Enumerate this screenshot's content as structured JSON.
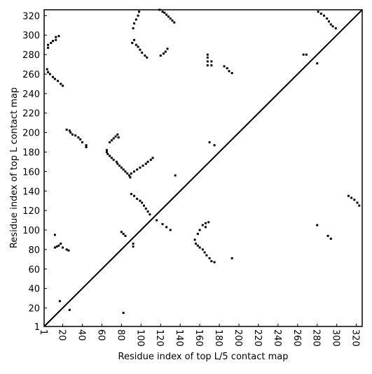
{
  "chart_data": {
    "type": "scatter",
    "xlabel": "Residue index of top L/5 contact map",
    "ylabel": "Residue index of top L contact map",
    "xlim": [
      1,
      326
    ],
    "ylim": [
      1,
      326
    ],
    "xticks": [
      1,
      20,
      40,
      60,
      80,
      100,
      120,
      140,
      160,
      180,
      200,
      220,
      240,
      260,
      280,
      300,
      320
    ],
    "yticks": [
      1,
      20,
      40,
      60,
      80,
      100,
      120,
      140,
      160,
      180,
      200,
      220,
      240,
      260,
      280,
      300,
      320
    ],
    "diagonal": true,
    "color": "#000000",
    "x": [
      5,
      5,
      8,
      10,
      13,
      13,
      16,
      4,
      5,
      7,
      10,
      12,
      15,
      18,
      20,
      24,
      27,
      28,
      30,
      33,
      36,
      38,
      40,
      44,
      44,
      65,
      65,
      66,
      68,
      70,
      72,
      75,
      76,
      78,
      80,
      82,
      84,
      86,
      88,
      89,
      68,
      70,
      72,
      74,
      76,
      77,
      90,
      93,
      96,
      99,
      102,
      105,
      107,
      110,
      112,
      92,
      93,
      95,
      97,
      98,
      91,
      93,
      95,
      97,
      99,
      101,
      104,
      106,
      119,
      122,
      124,
      126,
      128,
      130,
      132,
      134,
      120,
      123,
      125,
      127,
      281,
      284,
      287,
      290,
      292,
      294,
      296,
      299,
      266,
      269,
      280,
      168,
      168,
      168,
      168,
      172,
      172,
      185,
      188,
      190,
      193,
      170,
      175,
      312,
      315,
      318,
      321,
      323,
      90,
      93,
      96,
      99,
      101,
      103,
      105,
      107,
      109,
      116,
      122,
      126,
      130,
      135,
      163,
      166,
      169,
      166,
      160,
      158,
      155,
      156,
      158,
      160,
      163,
      165,
      167,
      170,
      172,
      175,
      193,
      12,
      12,
      14,
      16,
      18,
      20,
      24,
      26,
      80,
      82,
      84,
      92,
      92,
      280,
      291,
      294,
      17,
      27,
      82
    ],
    "values": [
      287,
      290,
      292,
      294,
      295,
      298,
      299,
      265,
      262,
      260,
      257,
      255,
      253,
      250,
      248,
      203,
      202,
      200,
      198,
      197,
      195,
      193,
      190,
      187,
      185,
      182,
      180,
      178,
      176,
      174,
      172,
      170,
      168,
      166,
      164,
      162,
      160,
      158,
      156,
      154,
      190,
      192,
      194,
      196,
      198,
      195,
      158,
      160,
      162,
      164,
      166,
      168,
      170,
      172,
      174,
      307,
      312,
      316,
      320,
      324,
      292,
      295,
      290,
      288,
      285,
      282,
      279,
      277,
      326,
      324,
      323,
      321,
      319,
      317,
      315,
      313,
      279,
      281,
      283,
      286,
      324,
      322,
      320,
      317,
      314,
      311,
      309,
      307,
      280,
      280,
      271,
      280,
      277,
      273,
      269,
      273,
      269,
      268,
      266,
      263,
      261,
      190,
      187,
      135,
      133,
      131,
      128,
      125,
      137,
      135,
      132,
      130,
      128,
      125,
      122,
      119,
      116,
      110,
      106,
      103,
      100,
      156,
      105,
      107,
      108,
      103,
      100,
      96,
      90,
      86,
      84,
      82,
      80,
      77,
      74,
      71,
      68,
      67,
      71,
      95,
      82,
      83,
      84,
      86,
      82,
      80,
      79,
      98,
      96,
      94,
      86,
      83,
      105,
      94,
      91,
      27,
      18,
      15
    ]
  }
}
